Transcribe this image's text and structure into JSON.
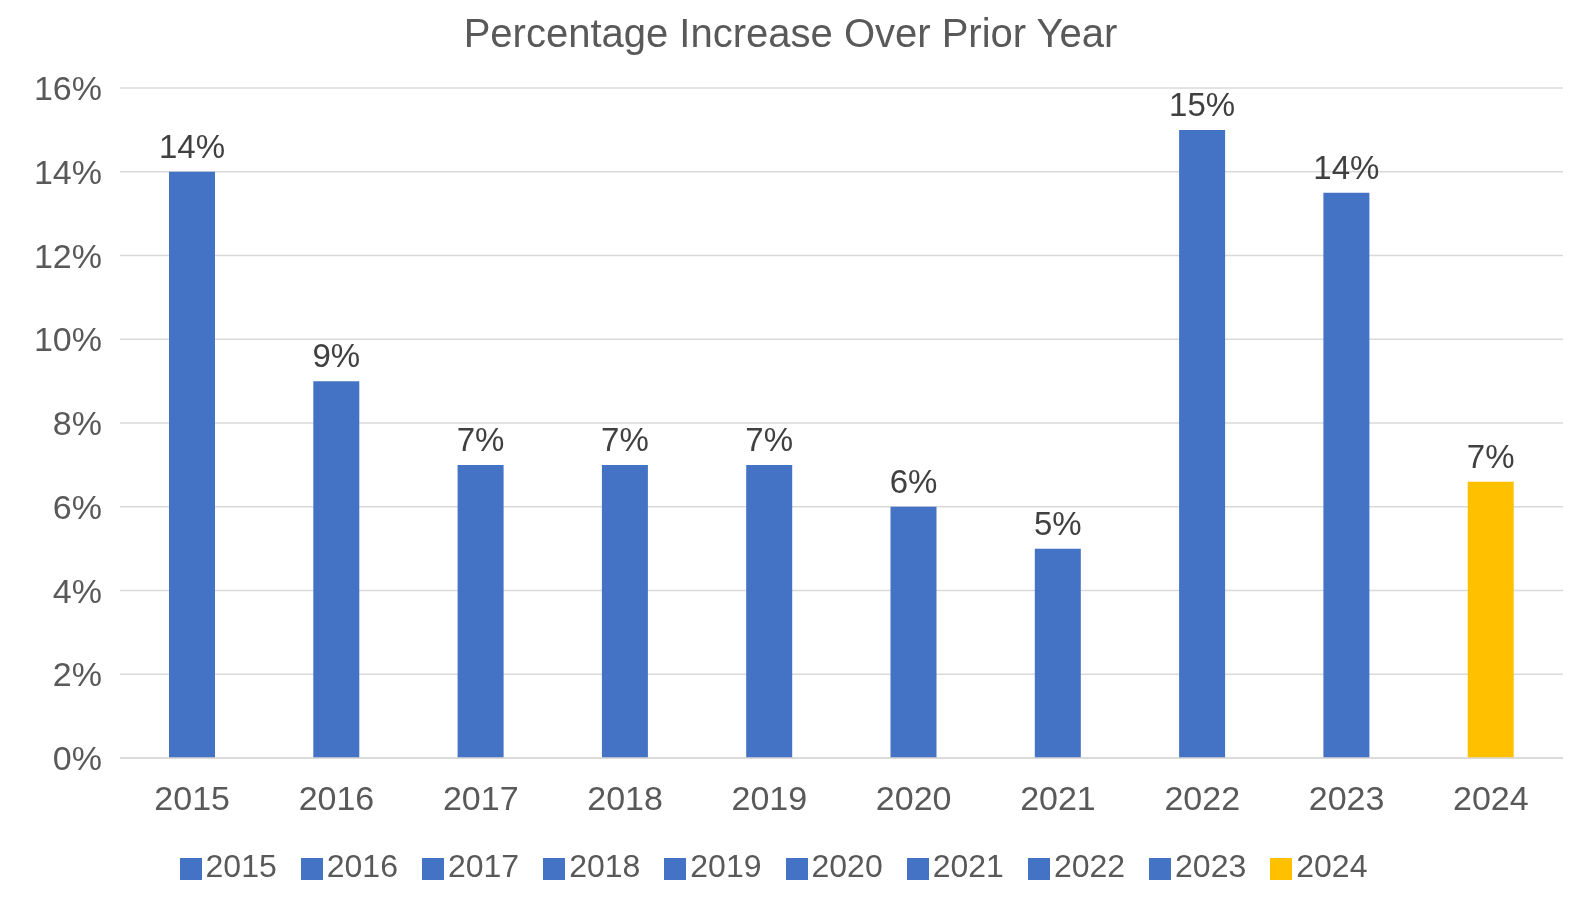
{
  "chart_data": {
    "type": "bar",
    "title": "Percentage Increase Over Prior Year",
    "categories": [
      "2015",
      "2016",
      "2017",
      "2018",
      "2019",
      "2020",
      "2021",
      "2022",
      "2023",
      "2024"
    ],
    "stacked": true,
    "series": [
      {
        "name": "2015",
        "color": "#4472c4",
        "values": [
          14,
          null,
          null,
          null,
          null,
          null,
          null,
          null,
          null,
          null
        ],
        "value_labels": [
          "14%",
          null,
          null,
          null,
          null,
          null,
          null,
          null,
          null,
          null
        ]
      },
      {
        "name": "2016",
        "color": "#4472c4",
        "values": [
          null,
          9,
          null,
          null,
          null,
          null,
          null,
          null,
          null,
          null
        ],
        "value_labels": [
          null,
          "9%",
          null,
          null,
          null,
          null,
          null,
          null,
          null,
          null
        ]
      },
      {
        "name": "2017",
        "color": "#4472c4",
        "values": [
          null,
          null,
          7,
          null,
          null,
          null,
          null,
          null,
          null,
          null
        ],
        "value_labels": [
          null,
          null,
          "7%",
          null,
          null,
          null,
          null,
          null,
          null,
          null
        ]
      },
      {
        "name": "2018",
        "color": "#4472c4",
        "values": [
          null,
          null,
          null,
          7,
          null,
          null,
          null,
          null,
          null,
          null
        ],
        "value_labels": [
          null,
          null,
          null,
          "7%",
          null,
          null,
          null,
          null,
          null,
          null
        ]
      },
      {
        "name": "2019",
        "color": "#4472c4",
        "values": [
          null,
          null,
          null,
          null,
          7,
          null,
          null,
          null,
          null,
          null
        ],
        "value_labels": [
          null,
          null,
          null,
          null,
          "7%",
          null,
          null,
          null,
          null,
          null
        ]
      },
      {
        "name": "2020",
        "color": "#4472c4",
        "values": [
          null,
          null,
          null,
          null,
          null,
          6,
          null,
          null,
          null,
          null
        ],
        "value_labels": [
          null,
          null,
          null,
          null,
          null,
          "6%",
          null,
          null,
          null,
          null
        ]
      },
      {
        "name": "2021",
        "color": "#4472c4",
        "values": [
          null,
          null,
          null,
          null,
          null,
          null,
          5,
          null,
          null,
          null
        ],
        "value_labels": [
          null,
          null,
          null,
          null,
          null,
          null,
          "5%",
          null,
          null,
          null
        ]
      },
      {
        "name": "2022",
        "color": "#4472c4",
        "values": [
          null,
          null,
          null,
          null,
          null,
          null,
          null,
          15,
          null,
          null
        ],
        "value_labels": [
          null,
          null,
          null,
          null,
          null,
          null,
          null,
          "15%",
          null,
          null
        ]
      },
      {
        "name": "2023",
        "color": "#4472c4",
        "values": [
          null,
          null,
          null,
          null,
          null,
          null,
          null,
          null,
          13.5,
          null
        ],
        "value_labels": [
          null,
          null,
          null,
          null,
          null,
          null,
          null,
          null,
          "14%",
          null
        ]
      },
      {
        "name": "2024",
        "color": "#ffc000",
        "values": [
          null,
          null,
          null,
          null,
          null,
          null,
          null,
          null,
          null,
          6.6
        ],
        "value_labels": [
          null,
          null,
          null,
          null,
          null,
          null,
          null,
          null,
          null,
          "7%"
        ]
      }
    ],
    "ylim": [
      0,
      16
    ],
    "yticks": [
      {
        "value": 0,
        "label": "0%"
      },
      {
        "value": 2,
        "label": "2%"
      },
      {
        "value": 4,
        "label": "4%"
      },
      {
        "value": 6,
        "label": "6%"
      },
      {
        "value": 8,
        "label": "8%"
      },
      {
        "value": 10,
        "label": "10%"
      },
      {
        "value": 12,
        "label": "12%"
      },
      {
        "value": 14,
        "label": "14%"
      },
      {
        "value": 16,
        "label": "16%"
      }
    ],
    "grid": "y",
    "legend": "bottom"
  }
}
